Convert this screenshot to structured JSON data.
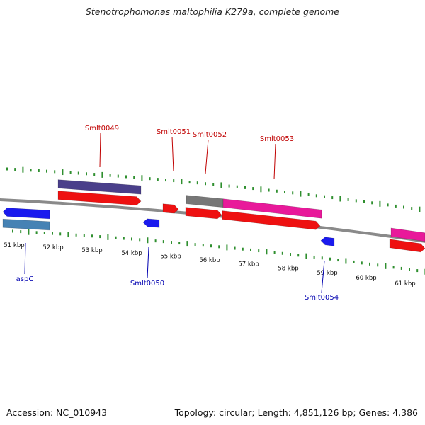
{
  "title": "Stenotrophomonas maltophilia K279a, complete genome",
  "footer": {
    "accession": "Accession: NC_010943",
    "summary": "Topology: circular; Length: 4,851,126 bp; Genes: 4,386"
  },
  "colors": {
    "backbone": "#8a8a8a",
    "tick": "#2f8f2f",
    "forward_label": "#c00000",
    "reverse_label": "#0000b0",
    "cds_forward": "#ee1111",
    "cds_reverse": "#1a1aee",
    "feature_purple": "#4a3f8a",
    "feature_gray": "#777777",
    "feature_pink": "#e8199a",
    "feature_steelblue": "#4682b4"
  },
  "scale": {
    "unit": "kbp",
    "labels": [
      "51 kbp",
      "52 kbp",
      "53 kbp",
      "54 kbp",
      "55 kbp",
      "56 kbp",
      "57 kbp",
      "58 kbp",
      "59 kbp",
      "60 kbp",
      "61 kbp"
    ]
  },
  "genes": [
    {
      "name": "Smlt0049",
      "strand": "forward"
    },
    {
      "name": "Smlt0051",
      "strand": "forward"
    },
    {
      "name": "Smlt0052",
      "strand": "forward"
    },
    {
      "name": "Smlt0053",
      "strand": "forward"
    },
    {
      "name": "aspC",
      "strand": "reverse"
    },
    {
      "name": "Smlt0050",
      "strand": "reverse"
    },
    {
      "name": "Smlt0054",
      "strand": "reverse"
    }
  ]
}
